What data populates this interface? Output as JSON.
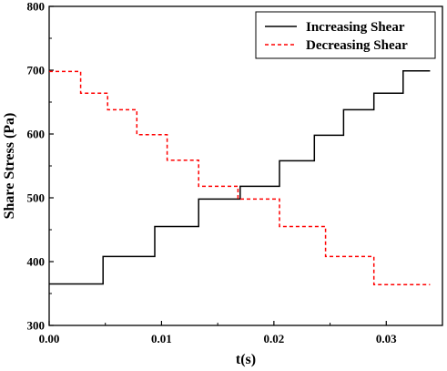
{
  "chart_data": {
    "type": "line",
    "title": "",
    "xlabel": "t(s)",
    "ylabel": "Share Stress (Pa)",
    "xlim": [
      0.0,
      0.035
    ],
    "ylim": [
      300,
      800
    ],
    "xticks": [
      "0.00",
      "0.01",
      "0.02",
      "0.03"
    ],
    "yticks": [
      "300",
      "400",
      "500",
      "600",
      "700",
      "800"
    ],
    "x_tick_values": [
      0.0,
      0.01,
      0.02,
      0.03
    ],
    "y_tick_values": [
      300,
      400,
      500,
      600,
      700,
      800
    ],
    "grid": false,
    "legend_position": "top-right",
    "series": [
      {
        "name": "Increasing Shear",
        "style": "solid",
        "color": "#000000",
        "x": [
          0.0,
          0.0048,
          0.0048,
          0.0094,
          0.0094,
          0.0133,
          0.0133,
          0.017,
          0.017,
          0.0205,
          0.0205,
          0.0236,
          0.0236,
          0.0262,
          0.0262,
          0.0289,
          0.0289,
          0.0315,
          0.0315,
          0.0339
        ],
        "y": [
          365,
          365,
          408,
          408,
          455,
          455,
          498,
          498,
          518,
          518,
          558,
          558,
          598,
          598,
          638,
          638,
          664,
          664,
          699,
          699
        ]
      },
      {
        "name": "Decreasing Shear",
        "style": "dashed",
        "color": "#ff0000",
        "x": [
          0.0,
          0.0028,
          0.0028,
          0.0052,
          0.0052,
          0.0078,
          0.0078,
          0.0105,
          0.0105,
          0.0133,
          0.0133,
          0.0168,
          0.0168,
          0.0205,
          0.0205,
          0.0246,
          0.0246,
          0.0289,
          0.0289,
          0.0339
        ],
        "y": [
          698,
          698,
          664,
          664,
          638,
          638,
          599,
          599,
          559,
          559,
          518,
          518,
          498,
          498,
          455,
          455,
          408,
          408,
          364,
          364
        ]
      }
    ]
  }
}
